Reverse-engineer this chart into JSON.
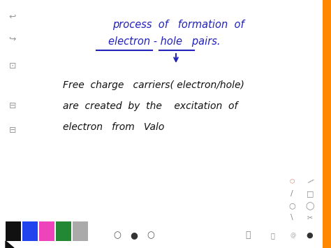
{
  "bg_color": "#ffffff",
  "title_line1": "process  of   formation  of",
  "title_line2": "electron - hole   pairs.",
  "body_line1": "Free  charge   carriers( electron/hole)",
  "body_line2": "are  created  by  the    excitation  of",
  "body_line3": "electron   from   Valo",
  "title_color": "#2222bb",
  "body_color": "#111111",
  "title_fontsize": 10.5,
  "body_fontsize": 10,
  "figsize": [
    4.74,
    3.55
  ],
  "dpi": 100
}
